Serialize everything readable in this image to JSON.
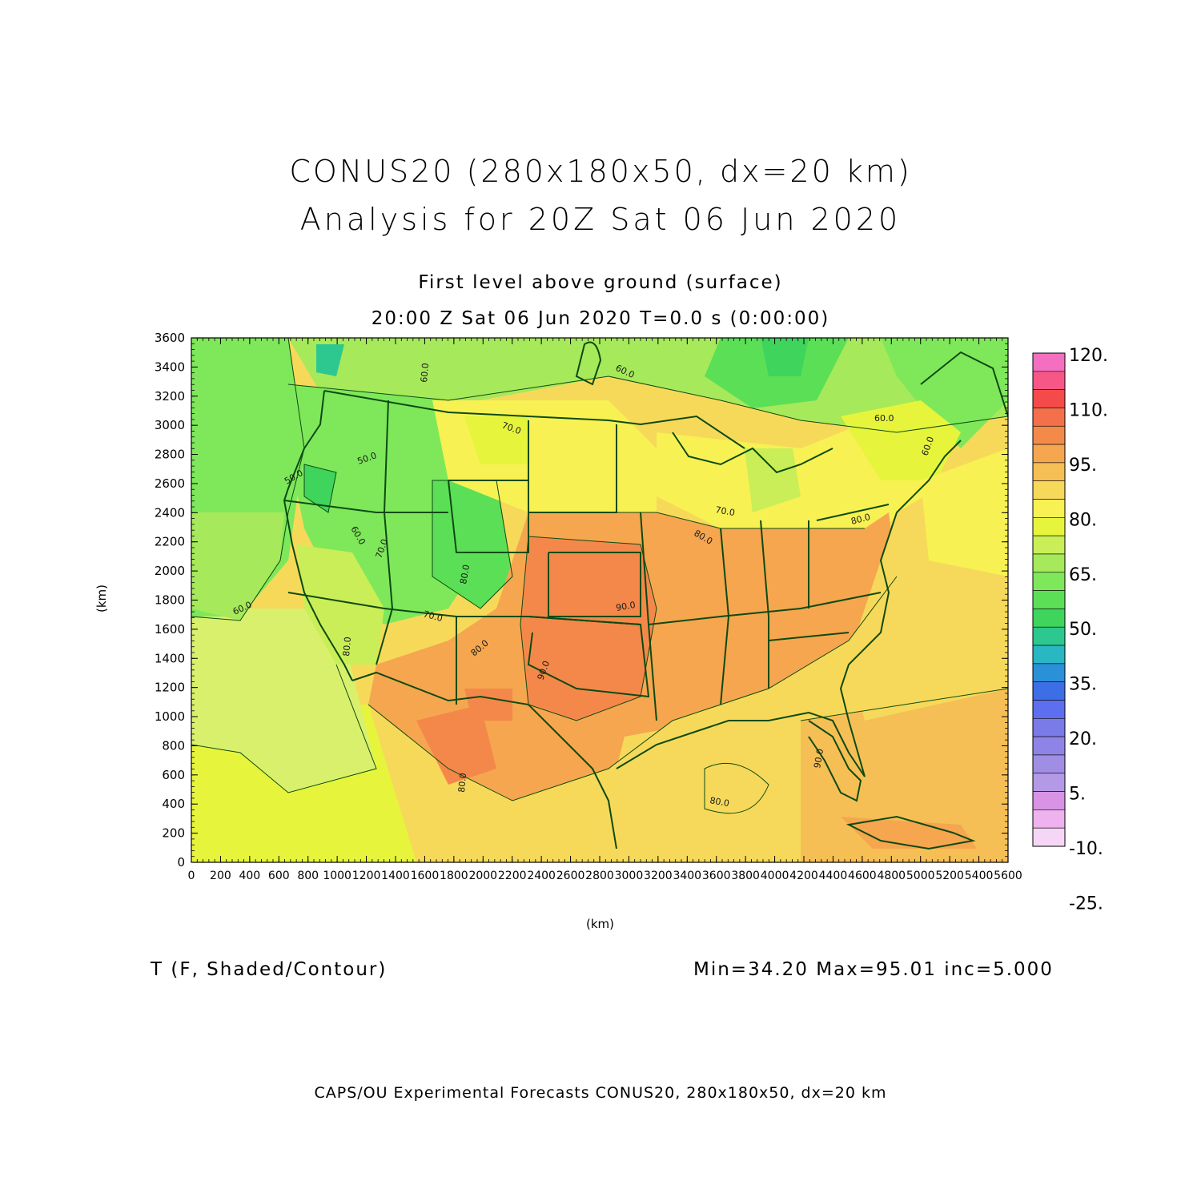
{
  "title_line1": "CONUS20 (280x180x50, dx=20 km)",
  "title_line2": "Analysis for 20Z Sat 06 Jun 2020",
  "subtitle_line1": "First level above ground (surface)",
  "subtitle_line2": "20:00 Z Sat 06 Jun 2020    T=0.0 s (0:00:00)",
  "y_axis_label": "(km)",
  "x_axis_label": "(km)",
  "variable_label": "T (F, Shaded/Contour)",
  "stats_label": "Min=34.20 Max=95.01 inc=5.000",
  "footer": "CAPS/OU Experimental Forecasts  CONUS20, 280x180x50, dx=20 km",
  "x_axis": {
    "range": [
      0,
      5600
    ],
    "ticks": [
      "0",
      "200",
      "400",
      "600",
      "800",
      "1000",
      "1200",
      "1400",
      "1600",
      "1800",
      "2000",
      "2200",
      "2400",
      "2600",
      "2800",
      "3000",
      "3200",
      "3400",
      "3600",
      "3800",
      "4000",
      "4200",
      "4400",
      "4600",
      "4800",
      "5000",
      "5200",
      "5400",
      "5600"
    ]
  },
  "y_axis": {
    "range": [
      0,
      3600
    ],
    "ticks": [
      "0",
      "200",
      "400",
      "600",
      "800",
      "1000",
      "1200",
      "1400",
      "1600",
      "1800",
      "2000",
      "2200",
      "2400",
      "2600",
      "2800",
      "3000",
      "3200",
      "3400",
      "3600"
    ]
  },
  "colorbar": {
    "labels": [
      "120.",
      "110.",
      "95.",
      "80.",
      "65.",
      "50.",
      "35.",
      "20.",
      "5.",
      "-10.",
      "-25."
    ],
    "colors_top_to_bottom": [
      "#f46fbf",
      "#f65786",
      "#f44a4a",
      "#f4704a",
      "#f48a4a",
      "#f5a64f",
      "#f5bf55",
      "#f6d95a",
      "#f7f153",
      "#e6f53b",
      "#c9ee57",
      "#a6e95a",
      "#7ee85a",
      "#5bdf56",
      "#3fd45c",
      "#2dc88f",
      "#28b7c3",
      "#2a90d8",
      "#3c6fe6",
      "#5d6ff0",
      "#7a7ae8",
      "#8f84e6",
      "#a08ee5",
      "#b49ae6",
      "#d893e4",
      "#eeb2ee",
      "#f6d6f6"
    ]
  },
  "contour_labels": [
    "60.0",
    "60.0",
    "60.0",
    "70.0",
    "50.0",
    "50.0",
    "60.0",
    "70.0",
    "80.0",
    "90.0",
    "80.0",
    "90.0",
    "80.0",
    "70.0",
    "80.0",
    "90.0",
    "80.0",
    "60.0",
    "80.0",
    "80.0",
    "60.0",
    "70.0"
  ],
  "colors": {
    "boundary": "#0d4a12",
    "frame": "#000000"
  }
}
